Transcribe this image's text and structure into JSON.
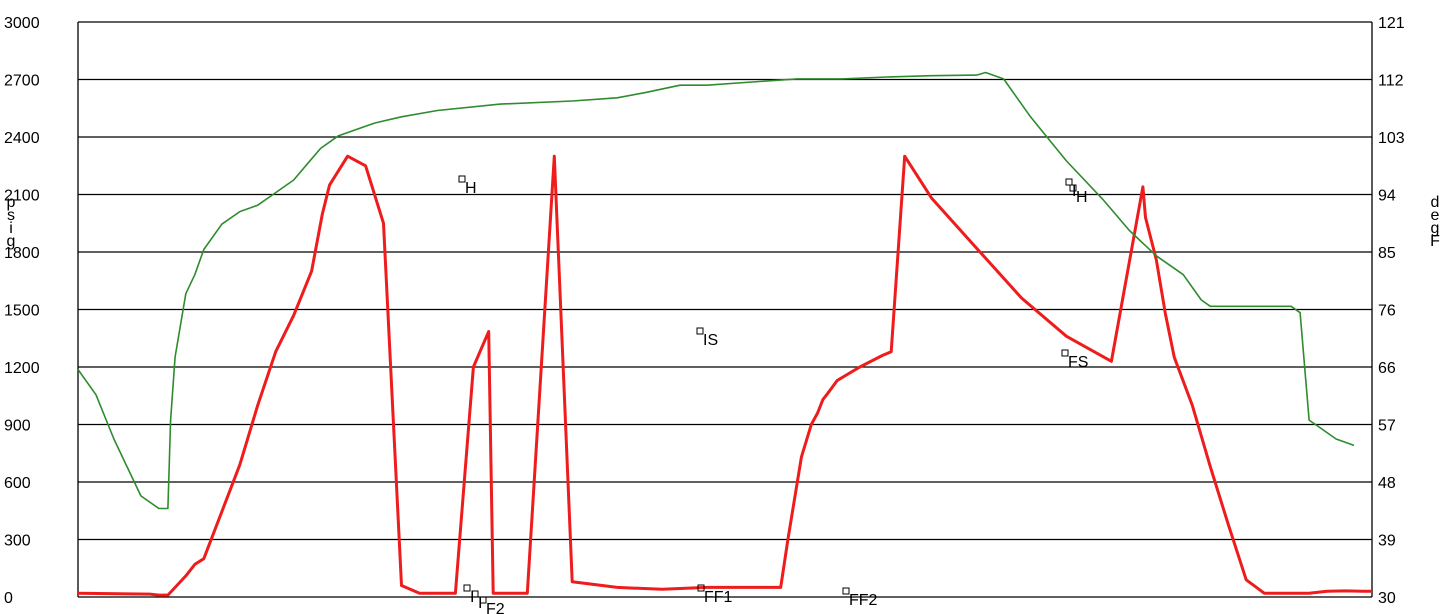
{
  "chart_data": {
    "type": "line",
    "title": "",
    "y_left": {
      "label": "psig",
      "lim": [
        0,
        3000
      ],
      "ticks": [
        "0",
        "300",
        "600",
        "900",
        "1200",
        "1500",
        "1800",
        "2100",
        "2400",
        "2700",
        "3000"
      ]
    },
    "y_right": {
      "label": "degF",
      "lim": [
        30,
        121
      ],
      "ticks": [
        "30",
        "39",
        "48",
        "57",
        "66",
        "76",
        "85",
        "94",
        "103",
        "112",
        "121"
      ]
    },
    "x_ticks_shown": false,
    "grid": "horizontal",
    "legend": "none",
    "series": [
      {
        "axis": "left",
        "color": "#ee1c1c",
        "x": [
          0,
          8,
          9,
          10,
          12,
          13,
          14,
          18,
          20,
          22,
          24,
          26,
          27.2,
          28,
          30,
          32,
          34,
          36,
          38,
          40,
          42,
          44,
          45.7,
          46.2,
          47,
          48,
          50,
          53,
          55,
          60,
          65,
          70,
          75,
          78.2,
          79,
          80.5,
          81.6,
          82.3,
          82.9,
          83.4,
          84.5,
          87,
          89.5,
          90.5,
          92,
          95,
          100,
          105,
          110,
          115,
          118.5,
          118.8,
          120,
          121,
          122,
          124,
          126,
          128,
          130,
          132,
          134,
          135,
          135.5,
          136,
          137,
          138,
          139,
          141,
          143,
          144
        ],
        "y": [
          20,
          15,
          10,
          10,
          110,
          170,
          200,
          690,
          1000,
          1280,
          1470,
          1700,
          2000,
          2150,
          2300,
          2250,
          1950,
          60,
          20,
          20,
          20,
          1200,
          1385,
          20,
          20,
          20,
          20,
          2300,
          80,
          50,
          40,
          50,
          50,
          50,
          300,
          730,
          900,
          960,
          1030,
          1060,
          1130,
          1200,
          1260,
          1280,
          2300,
          2080,
          1820,
          1560,
          1360,
          1230,
          2140,
          1980,
          1760,
          1480,
          1250,
          1000,
          680,
          380,
          90,
          20,
          20,
          20,
          20,
          20,
          20,
          25,
          30,
          32,
          30,
          30
        ]
      },
      {
        "axis": "right",
        "color": "#2e8b2e",
        "x": [
          0,
          2,
          4,
          7,
          9,
          10,
          10.3,
          10.8,
          12,
          13,
          14,
          16,
          18,
          20,
          22,
          24,
          25.5,
          27,
          29,
          33,
          36,
          40,
          47,
          55,
          60,
          63,
          67,
          70,
          75,
          80,
          85,
          90,
          95,
          100,
          101,
          103,
          106,
          110,
          114,
          117,
          120,
          123,
          125,
          126,
          127,
          129,
          132,
          135,
          136,
          137,
          138,
          140,
          142
        ],
        "y": [
          66,
          62,
          55,
          46,
          44,
          44,
          58,
          68,
          78,
          81,
          85,
          89,
          91,
          92,
          94,
          96,
          98.5,
          101,
          103,
          105,
          106,
          107,
          108,
          108.5,
          109,
          109.8,
          111,
          111,
          111.5,
          112,
          112,
          112.3,
          112.5,
          112.6,
          113,
          112,
          106,
          99,
          93,
          88,
          84,
          81,
          77,
          76,
          76,
          76,
          76,
          76,
          75,
          58,
          57,
          55,
          54
        ]
      }
    ],
    "annotations": [
      "H",
      "I",
      "I",
      "F2",
      "IS",
      "FF1",
      "FF2",
      "I",
      "H",
      "FS"
    ]
  }
}
